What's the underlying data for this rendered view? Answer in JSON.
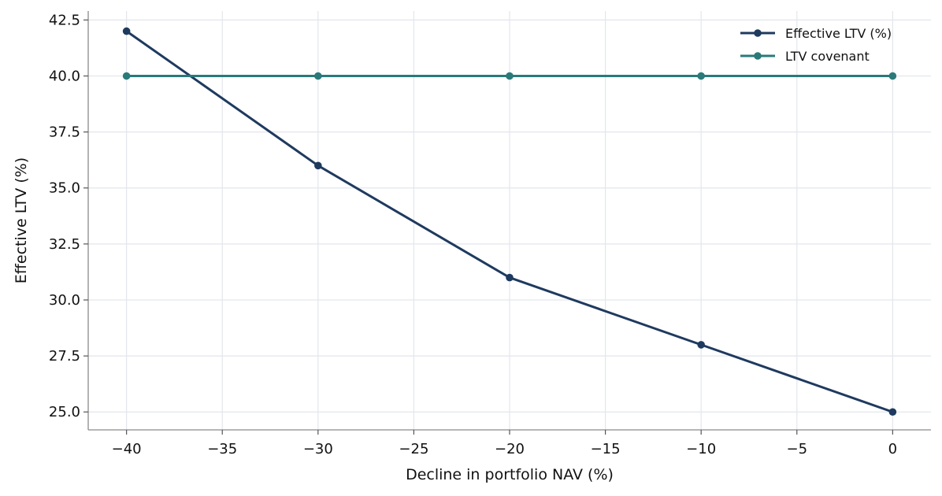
{
  "chart_data": {
    "type": "line",
    "xlabel": "Decline in portfolio NAV (%)",
    "ylabel": "Effective LTV (%)",
    "x": [
      -40,
      -30,
      -20,
      -10,
      0
    ],
    "series": [
      {
        "name": "Effective LTV (%)",
        "color": "#1f3a5f",
        "values": [
          42,
          36,
          31,
          28,
          25
        ]
      },
      {
        "name": "LTV covenant",
        "color": "#2a7a7a",
        "values": [
          40,
          40,
          40,
          40,
          40
        ]
      }
    ],
    "xlim": [
      -42,
      2
    ],
    "ylim": [
      24.2,
      42.9
    ],
    "xticks": [
      -40,
      -35,
      -30,
      -25,
      -20,
      -15,
      -10,
      -5,
      0
    ],
    "xtick_labels": [
      "−40",
      "−35",
      "−30",
      "−25",
      "−20",
      "−15",
      "−10",
      "−5",
      "0"
    ],
    "yticks": [
      25.0,
      27.5,
      30.0,
      32.5,
      35.0,
      37.5,
      40.0,
      42.5
    ],
    "ytick_labels": [
      "25.0",
      "27.5",
      "30.0",
      "32.5",
      "35.0",
      "37.5",
      "40.0",
      "42.5"
    ],
    "grid": true,
    "legend_position": "top-right"
  }
}
